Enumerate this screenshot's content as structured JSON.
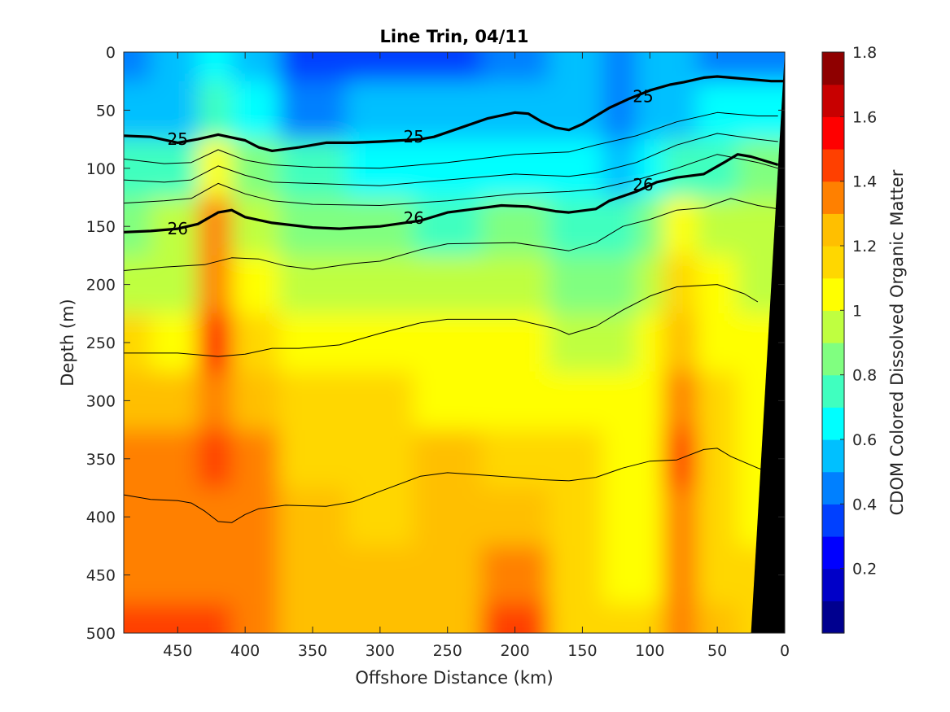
{
  "chart_data": {
    "type": "heatmap",
    "title": "Line Trin, 04/11",
    "xlabel": "Offshore Distance (km)",
    "ylabel": "Depth (m)",
    "colorbar_label": "CDOM Colored Dissolved Organic Matter",
    "xlim": [
      490,
      0
    ],
    "ylim": [
      500,
      0
    ],
    "x_reversed": true,
    "y_reversed": true,
    "x_ticks": [
      "450",
      "400",
      "350",
      "300",
      "250",
      "200",
      "150",
      "100",
      "50",
      "0"
    ],
    "y_ticks": [
      "0",
      "50",
      "100",
      "150",
      "200",
      "250",
      "300",
      "350",
      "400",
      "450",
      "500"
    ],
    "colorbar": {
      "range": [
        0,
        1.8
      ],
      "ticks": [
        "0.2",
        "0.4",
        "0.6",
        "0.8",
        "1",
        "1.2",
        "1.4",
        "1.6",
        "1.8"
      ],
      "levels": [
        0,
        0.1,
        0.2,
        0.3,
        0.4,
        0.5,
        0.6,
        0.7,
        0.8,
        0.9,
        1.0,
        1.1,
        1.2,
        1.3,
        1.4,
        1.5,
        1.6,
        1.7,
        1.8
      ],
      "colormap": "jet",
      "colors": [
        "#00008f",
        "#0000c8",
        "#0000ff",
        "#0040ff",
        "#0080ff",
        "#00c0ff",
        "#00ffff",
        "#40ffbf",
        "#80ff80",
        "#bfff40",
        "#ffff00",
        "#ffd700",
        "#ffbf00",
        "#ff8000",
        "#ff4000",
        "#ff0000",
        "#c80000",
        "#8f0000"
      ]
    },
    "cdom_field_estimate": {
      "note": "Values estimated from colour; rows = depths, columns = offshore distances",
      "distance_km": [
        490,
        450,
        420,
        400,
        350,
        300,
        250,
        200,
        150,
        120,
        100,
        80,
        50,
        20
      ],
      "depth_m": [
        0,
        50,
        100,
        150,
        200,
        250,
        300,
        350,
        400,
        450,
        500
      ],
      "values": [
        [
          0.48,
          0.5,
          0.62,
          0.55,
          0.35,
          0.35,
          0.38,
          0.42,
          0.5,
          0.45,
          0.5,
          0.52,
          0.45,
          0.4
        ],
        [
          0.55,
          0.55,
          0.7,
          0.6,
          0.48,
          0.5,
          0.5,
          0.55,
          0.55,
          0.45,
          0.52,
          0.55,
          0.6,
          0.65
        ],
        [
          0.72,
          0.72,
          1.05,
          0.8,
          0.7,
          0.65,
          0.62,
          0.62,
          0.6,
          0.55,
          0.65,
          0.72,
          0.78,
          0.8
        ],
        [
          0.88,
          0.9,
          1.3,
          0.95,
          0.85,
          0.8,
          0.78,
          0.8,
          0.78,
          0.75,
          0.85,
          1.0,
          0.92,
          0.9
        ],
        [
          0.95,
          0.95,
          1.35,
          1.05,
          0.95,
          0.92,
          0.9,
          0.9,
          0.88,
          0.88,
          0.95,
          1.15,
          1.0,
          0.98
        ],
        [
          1.1,
          1.05,
          1.55,
          1.15,
          1.05,
          1.0,
          1.0,
          1.0,
          0.98,
          0.95,
          1.0,
          1.25,
          1.05,
          1.02
        ],
        [
          1.22,
          1.2,
          1.3,
          1.22,
          1.12,
          1.1,
          1.08,
          1.05,
          1.05,
          1.0,
          1.05,
          1.3,
          1.1,
          1.05
        ],
        [
          1.3,
          1.35,
          1.45,
          1.3,
          1.18,
          1.15,
          1.2,
          1.15,
          1.1,
          1.05,
          1.05,
          1.4,
          1.15,
          1.05
        ],
        [
          1.3,
          1.3,
          1.35,
          1.3,
          1.22,
          1.18,
          1.22,
          1.25,
          1.12,
          1.05,
          1.05,
          1.35,
          1.15,
          1.05
        ],
        [
          1.35,
          1.38,
          1.35,
          1.3,
          1.25,
          1.22,
          1.25,
          1.32,
          1.12,
          1.08,
          1.08,
          1.3,
          1.18,
          1.1
        ],
        [
          1.42,
          1.45,
          1.4,
          1.35,
          1.28,
          1.25,
          1.28,
          1.45,
          1.15,
          1.1,
          1.12,
          1.35,
          1.2,
          1.15
        ]
      ]
    },
    "density_contours": [
      {
        "level": "25",
        "bold": true,
        "points": [
          [
            490,
            72
          ],
          [
            470,
            73
          ],
          [
            450,
            78
          ],
          [
            435,
            75
          ],
          [
            420,
            71
          ],
          [
            400,
            76
          ],
          [
            390,
            82
          ],
          [
            380,
            85
          ],
          [
            360,
            82
          ],
          [
            340,
            78
          ],
          [
            320,
            78
          ],
          [
            300,
            77
          ],
          [
            270,
            75
          ],
          [
            260,
            73
          ],
          [
            240,
            65
          ],
          [
            220,
            57
          ],
          [
            200,
            52
          ],
          [
            190,
            53
          ],
          [
            180,
            60
          ],
          [
            170,
            65
          ],
          [
            160,
            67
          ],
          [
            150,
            62
          ],
          [
            140,
            55
          ],
          [
            130,
            48
          ],
          [
            115,
            40
          ],
          [
            100,
            33
          ],
          [
            85,
            28
          ],
          [
            75,
            26
          ],
          [
            60,
            22
          ],
          [
            50,
            21
          ],
          [
            40,
            22
          ],
          [
            10,
            25
          ],
          [
            0,
            25
          ]
        ]
      },
      {
        "level": "26",
        "bold": true,
        "points": [
          [
            490,
            155
          ],
          [
            470,
            154
          ],
          [
            450,
            152
          ],
          [
            435,
            148
          ],
          [
            420,
            138
          ],
          [
            410,
            136
          ],
          [
            400,
            142
          ],
          [
            380,
            147
          ],
          [
            350,
            151
          ],
          [
            330,
            152
          ],
          [
            300,
            150
          ],
          [
            270,
            145
          ],
          [
            250,
            138
          ],
          [
            230,
            135
          ],
          [
            210,
            132
          ],
          [
            190,
            133
          ],
          [
            170,
            137
          ],
          [
            160,
            138
          ],
          [
            140,
            135
          ],
          [
            130,
            128
          ],
          [
            110,
            120
          ],
          [
            95,
            112
          ],
          [
            80,
            108
          ],
          [
            60,
            105
          ],
          [
            45,
            95
          ],
          [
            35,
            88
          ],
          [
            25,
            90
          ],
          [
            5,
            97
          ]
        ]
      },
      {
        "level": "",
        "bold": false,
        "points": [
          [
            490,
            92
          ],
          [
            460,
            96
          ],
          [
            440,
            95
          ],
          [
            420,
            84
          ],
          [
            400,
            93
          ],
          [
            380,
            97
          ],
          [
            350,
            99
          ],
          [
            300,
            100
          ],
          [
            250,
            95
          ],
          [
            200,
            88
          ],
          [
            160,
            86
          ],
          [
            140,
            80
          ],
          [
            110,
            72
          ],
          [
            80,
            60
          ],
          [
            50,
            52
          ],
          [
            20,
            55
          ],
          [
            5,
            55
          ]
        ]
      },
      {
        "level": "",
        "bold": false,
        "points": [
          [
            490,
            110
          ],
          [
            460,
            112
          ],
          [
            440,
            110
          ],
          [
            420,
            98
          ],
          [
            400,
            106
          ],
          [
            380,
            112
          ],
          [
            350,
            113
          ],
          [
            300,
            115
          ],
          [
            250,
            110
          ],
          [
            200,
            105
          ],
          [
            160,
            107
          ],
          [
            140,
            104
          ],
          [
            110,
            95
          ],
          [
            80,
            80
          ],
          [
            50,
            70
          ],
          [
            20,
            75
          ],
          [
            5,
            77
          ]
        ]
      },
      {
        "level": "",
        "bold": false,
        "points": [
          [
            490,
            130
          ],
          [
            460,
            128
          ],
          [
            440,
            126
          ],
          [
            420,
            113
          ],
          [
            400,
            122
          ],
          [
            380,
            128
          ],
          [
            350,
            131
          ],
          [
            300,
            132
          ],
          [
            250,
            128
          ],
          [
            200,
            122
          ],
          [
            160,
            120
          ],
          [
            140,
            118
          ],
          [
            110,
            110
          ],
          [
            80,
            100
          ],
          [
            50,
            88
          ],
          [
            20,
            95
          ],
          [
            5,
            100
          ]
        ]
      },
      {
        "level": "",
        "bold": false,
        "points": [
          [
            490,
            188
          ],
          [
            460,
            185
          ],
          [
            430,
            183
          ],
          [
            410,
            177
          ],
          [
            390,
            178
          ],
          [
            370,
            184
          ],
          [
            350,
            187
          ],
          [
            320,
            182
          ],
          [
            300,
            180
          ],
          [
            270,
            170
          ],
          [
            250,
            165
          ],
          [
            200,
            164
          ],
          [
            160,
            171
          ],
          [
            140,
            164
          ],
          [
            120,
            150
          ],
          [
            100,
            144
          ],
          [
            80,
            136
          ],
          [
            60,
            134
          ],
          [
            40,
            126
          ],
          [
            20,
            132
          ],
          [
            5,
            135
          ]
        ]
      },
      {
        "level": "",
        "bold": false,
        "points": [
          [
            490,
            259
          ],
          [
            450,
            259
          ],
          [
            420,
            262
          ],
          [
            400,
            260
          ],
          [
            380,
            255
          ],
          [
            360,
            255
          ],
          [
            330,
            252
          ],
          [
            300,
            242
          ],
          [
            270,
            233
          ],
          [
            250,
            230
          ],
          [
            200,
            230
          ],
          [
            170,
            238
          ],
          [
            160,
            243
          ],
          [
            140,
            236
          ],
          [
            120,
            222
          ],
          [
            100,
            210
          ],
          [
            80,
            202
          ],
          [
            50,
            200
          ],
          [
            30,
            208
          ],
          [
            20,
            215
          ]
        ]
      },
      {
        "level": "",
        "bold": false,
        "points": [
          [
            490,
            381
          ],
          [
            470,
            385
          ],
          [
            450,
            386
          ],
          [
            440,
            388
          ],
          [
            430,
            395
          ],
          [
            420,
            404
          ],
          [
            410,
            405
          ],
          [
            400,
            398
          ],
          [
            390,
            393
          ],
          [
            370,
            390
          ],
          [
            340,
            391
          ],
          [
            320,
            387
          ],
          [
            300,
            378
          ],
          [
            270,
            365
          ],
          [
            250,
            362
          ],
          [
            200,
            366
          ],
          [
            180,
            368
          ],
          [
            160,
            369
          ],
          [
            140,
            366
          ],
          [
            120,
            358
          ],
          [
            100,
            352
          ],
          [
            80,
            351
          ],
          [
            60,
            342
          ],
          [
            50,
            341
          ],
          [
            40,
            348
          ],
          [
            20,
            358
          ],
          [
            15,
            360
          ]
        ]
      }
    ],
    "contour_labels": [
      {
        "text": "25",
        "x": 450,
        "y": 75
      },
      {
        "text": "25",
        "x": 275,
        "y": 73
      },
      {
        "text": "25",
        "x": 105,
        "y": 38
      },
      {
        "text": "26",
        "x": 450,
        "y": 152
      },
      {
        "text": "26",
        "x": 275,
        "y": 143
      },
      {
        "text": "26",
        "x": 105,
        "y": 114
      }
    ],
    "topography": {
      "color": "#000000",
      "polygon": [
        [
          25,
          500
        ],
        [
          0,
          0
        ],
        [
          0,
          500
        ]
      ]
    }
  }
}
